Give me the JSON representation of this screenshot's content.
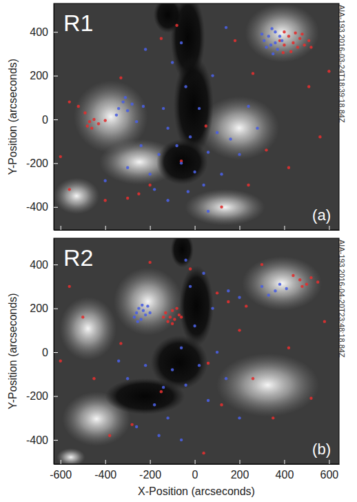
{
  "chart_data": [
    {
      "type": "scatter",
      "title": "R1",
      "subtitle": "AIA-193 2016-03-24T18:39:18.84Z",
      "annotations": [
        "(a)"
      ],
      "y_label": "Y-Position (arcseconds)",
      "xlim": [
        -630,
        645
      ],
      "ylim": [
        -505,
        530
      ],
      "xticks": [
        -600,
        -400,
        -200,
        0,
        200,
        400,
        600
      ],
      "yticks": [
        -400,
        -200,
        0,
        200,
        400
      ],
      "tick_labels": "y",
      "marker": "circle",
      "series": [
        {
          "color": "#e03030",
          "x": [
            380,
            400,
            420,
            440,
            460,
            470,
            490,
            510,
            430,
            450,
            400,
            520,
            395,
            480,
            -490,
            -470,
            -450,
            -430,
            -480,
            -560,
            -520,
            -400,
            -460,
            -300,
            -250,
            -200,
            -60,
            50,
            180,
            260,
            320,
            420,
            510,
            -150,
            -560,
            -600,
            120,
            -400,
            600,
            560,
            240,
            -80,
            -330
          ],
          "values": [
            360,
            340,
            380,
            350,
            330,
            370,
            340,
            360,
            310,
            395,
            400,
            330,
            305,
            390,
            30,
            -10,
            0,
            -20,
            -30,
            80,
            60,
            -5,
            -40,
            -360,
            -340,
            -300,
            -190,
            -30,
            360,
            210,
            -140,
            -220,
            150,
            370,
            -320,
            -170,
            -400,
            -370,
            220,
            -80,
            -300,
            430,
            190
          ]
        },
        {
          "color": "#4a5fe0",
          "x": [
            310,
            330,
            340,
            360,
            370,
            350,
            380,
            320,
            360,
            390,
            300,
            345,
            -340,
            -320,
            -300,
            -280,
            -310,
            -260,
            -350,
            -230,
            -120,
            -80,
            -60,
            -20,
            0,
            40,
            -160,
            -200,
            60,
            20,
            100,
            -40,
            80,
            -100,
            160,
            -240,
            -300,
            -180,
            -120,
            -30,
            120,
            200,
            240,
            -60,
            140,
            -220,
            -400,
            280,
            -140,
            60
          ],
          "values": [
            360,
            380,
            340,
            400,
            320,
            300,
            380,
            330,
            350,
            360,
            390,
            415,
            50,
            80,
            40,
            70,
            100,
            -10,
            20,
            60,
            -40,
            -120,
            -200,
            -80,
            -240,
            -300,
            -160,
            -250,
            -150,
            50,
            -60,
            150,
            200,
            260,
            -90,
            -120,
            -220,
            -320,
            -370,
            -330,
            -250,
            -160,
            60,
            350,
            420,
            320,
            -280,
            -40,
            50,
            -420
          ]
        }
      ]
    },
    {
      "type": "scatter",
      "title": "R2",
      "subtitle": "AIA-193 2016-04-20T23:48:18.84Z",
      "annotations": [
        "(b)"
      ],
      "x_label": "X-Position (arcseconds)",
      "y_label": "Y-Position (arcseconds)",
      "xlim": [
        -630,
        645
      ],
      "ylim": [
        -510,
        520
      ],
      "xticks": [
        -600,
        -400,
        -200,
        0,
        200,
        400,
        600
      ],
      "yticks": [
        -400,
        -200,
        0,
        200,
        400
      ],
      "marker": "circle",
      "series": [
        {
          "color": "#e03030",
          "x": [
            -130,
            -110,
            -100,
            -90,
            -70,
            -120,
            -80,
            -60,
            -140,
            -100,
            100,
            150,
            230,
            440,
            470,
            500,
            520,
            550,
            480,
            -560,
            -500,
            -450,
            -380,
            -280,
            -200,
            -20,
            60,
            120,
            260,
            350,
            420,
            520,
            580,
            -600,
            200,
            -330,
            40,
            300,
            -150
          ],
          "values": [
            180,
            160,
            190,
            150,
            170,
            140,
            200,
            160,
            160,
            130,
            270,
            230,
            210,
            350,
            330,
            310,
            340,
            320,
            300,
            300,
            160,
            -120,
            -380,
            -330,
            410,
            380,
            -50,
            -240,
            -120,
            -300,
            20,
            -210,
            140,
            -40,
            100,
            40,
            -460,
            400,
            -180
          ]
        },
        {
          "color": "#4a5fe0",
          "x": [
            -250,
            -230,
            -220,
            -260,
            -240,
            -210,
            -270,
            -200,
            -235,
            -255,
            150,
            200,
            300,
            330,
            380,
            360,
            410,
            -40,
            -20,
            0,
            -60,
            -100,
            -140,
            -180,
            -120,
            -40,
            20,
            60,
            100,
            -220,
            -300,
            -260,
            -60,
            80,
            140,
            -340,
            40,
            -160,
            200
          ],
          "values": [
            200,
            190,
            170,
            180,
            150,
            210,
            160,
            180,
            215,
            140,
            280,
            250,
            300,
            260,
            310,
            280,
            290,
            420,
            300,
            120,
            20,
            -80,
            -160,
            -240,
            -300,
            -150,
            -60,
            -220,
            0,
            -60,
            -120,
            -340,
            -400,
            200,
            -120,
            -40,
            360,
            -380,
            -300
          ]
        }
      ]
    }
  ]
}
